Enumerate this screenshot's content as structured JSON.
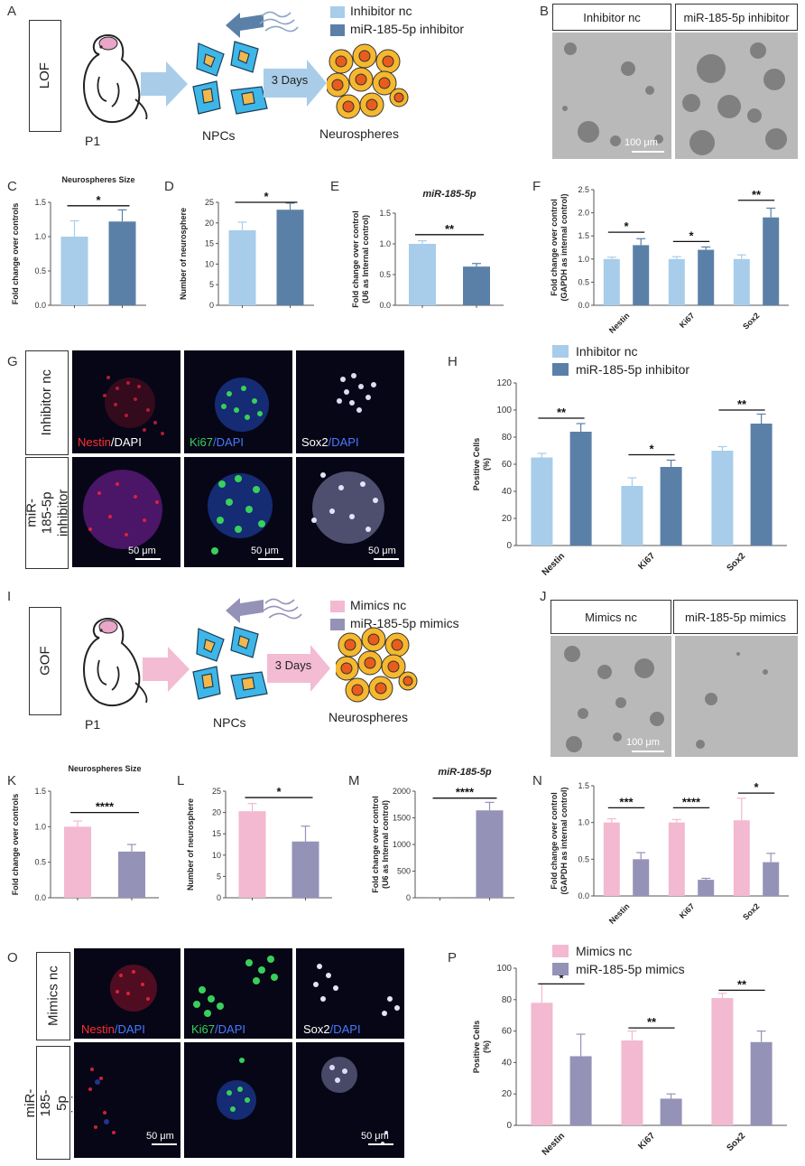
{
  "colors": {
    "light_blue": "#a7cdea",
    "dark_blue": "#5b80a8",
    "pink": "#f2b9d1",
    "purple": "#9592b8",
    "cell": "#3fb6e8",
    "nucleus": "#f2b84b",
    "sphere_outer": "#f5b82e",
    "sphere_inner": "#e85d1e",
    "lof_arrow": "#a9cde8",
    "gof_arrow": "#f3bcd2"
  },
  "panel_letters": [
    "A",
    "B",
    "C",
    "D",
    "E",
    "F",
    "G",
    "H",
    "I",
    "J",
    "K",
    "L",
    "M",
    "N",
    "O",
    "P"
  ],
  "schematic_lof": {
    "side_label": "LOF",
    "stage1": "P1",
    "stage2": "NPCs",
    "days": "3 Days",
    "stage3": "Neurospheres",
    "legend": [
      "Inhibitor nc",
      "miR-185-5p inhibitor"
    ]
  },
  "schematic_gof": {
    "side_label": "GOF",
    "stage1": "P1",
    "stage2": "NPCs",
    "days": "3 Days",
    "stage3": "Neurospheres",
    "legend": [
      "Mimics nc",
      "miR-185-5p mimics"
    ]
  },
  "micro_b": {
    "headers": [
      "Inhibitor nc",
      "miR-185-5p inhibitor"
    ],
    "scale": "100 μm"
  },
  "micro_j": {
    "headers": [
      "Mimics nc",
      "miR-185-5p mimics"
    ],
    "scale": "100 μm"
  },
  "if_g": {
    "rows": [
      "Inhibitor nc",
      "miR-185-5p inhibitor"
    ],
    "stains": [
      [
        "Nestin",
        "/DAPI"
      ],
      [
        "Ki67",
        "/DAPI"
      ],
      [
        "Sox2",
        "/DAPI"
      ]
    ],
    "scales": [
      "50 μm",
      "50 μm",
      "50 μm"
    ]
  },
  "if_o": {
    "rows": [
      "Mimics nc",
      "miR-185-5p mimics"
    ],
    "stains": [
      [
        "Nestin",
        "/DAPI"
      ],
      [
        "Ki67",
        "/DAPI"
      ],
      [
        "Sox2",
        "/DAPI"
      ]
    ],
    "scales": [
      "50 μm",
      "50 μm"
    ]
  },
  "chart_data": [
    {
      "id": "C",
      "type": "bar",
      "title": "Neurospheres Size",
      "ylabel": "Fold change over controls",
      "ylim": [
        0,
        1.5
      ],
      "yticks": [
        "0.0",
        "0.5",
        "1.0",
        "1.5"
      ],
      "values": [
        1.0,
        1.22
      ],
      "errors": [
        0.23,
        0.17
      ],
      "colors": [
        "#a7cdea",
        "#5b80a8"
      ],
      "sig": [
        {
          "text": "*",
          "from": 0,
          "to": 1,
          "y": 1.45
        }
      ]
    },
    {
      "id": "D",
      "type": "bar",
      "title": "",
      "ylabel": "Number of neurosphere",
      "ylim": [
        0,
        25
      ],
      "yticks": [
        "0",
        "5",
        "10",
        "15",
        "20",
        "25"
      ],
      "values": [
        18.2,
        23.2
      ],
      "errors": [
        2.0,
        1.6
      ],
      "colors": [
        "#a7cdea",
        "#5b80a8"
      ],
      "sig": [
        {
          "text": "*",
          "from": 0,
          "to": 1,
          "y": 25
        }
      ]
    },
    {
      "id": "E",
      "type": "bar",
      "title": "miR-185-5p",
      "ylabel": "Fold change over control (U6 as Internal control)",
      "ylim": [
        0,
        1.5
      ],
      "yticks": [
        "0.0",
        "0.5",
        "1.0",
        "1.5"
      ],
      "values": [
        1.0,
        0.63
      ],
      "errors": [
        0.05,
        0.05
      ],
      "colors": [
        "#a7cdea",
        "#5b80a8"
      ],
      "sig": [
        {
          "text": "**",
          "from": 0,
          "to": 1,
          "y": 1.15
        }
      ]
    },
    {
      "id": "F",
      "type": "bar",
      "title": "",
      "ylabel": "Fold change over control (GAPDH as internal control)",
      "ylim": [
        0,
        2.5
      ],
      "yticks": [
        "0.0",
        "0.5",
        "1.0",
        "1.5",
        "2.0",
        "2.5"
      ],
      "categories": [
        "Nestin",
        "Ki67",
        "Sox2"
      ],
      "series": [
        {
          "values": [
            1.0,
            1.0,
            1.0
          ],
          "errors": [
            0.04,
            0.05,
            0.09
          ]
        },
        {
          "values": [
            1.3,
            1.2,
            1.9
          ],
          "errors": [
            0.14,
            0.06,
            0.2
          ]
        }
      ],
      "colors": [
        "#a7cdea",
        "#5b80a8"
      ],
      "sig": [
        {
          "text": "*",
          "group": 0,
          "y": 1.58
        },
        {
          "text": "*",
          "group": 1,
          "y": 1.38
        },
        {
          "text": "**",
          "group": 2,
          "y": 2.27
        }
      ]
    },
    {
      "id": "H",
      "type": "bar",
      "title": "",
      "ylabel": "Positive Cells (%)",
      "ylim": [
        0,
        120
      ],
      "yticks": [
        "0",
        "20",
        "40",
        "60",
        "80",
        "100",
        "120"
      ],
      "categories": [
        "Nestin",
        "Ki67",
        "Sox2"
      ],
      "series": [
        {
          "name": "Inhibitor nc",
          "values": [
            65,
            44,
            70
          ],
          "errors": [
            3,
            6,
            3
          ]
        },
        {
          "name": "miR-185-5p inhibitor",
          "values": [
            84,
            58,
            90
          ],
          "errors": [
            6,
            5,
            7
          ]
        }
      ],
      "colors": [
        "#a7cdea",
        "#5b80a8"
      ],
      "sig": [
        {
          "text": "**",
          "group": 0,
          "y": 94
        },
        {
          "text": "*",
          "group": 1,
          "y": 67
        },
        {
          "text": "**",
          "group": 2,
          "y": 100
        }
      ]
    },
    {
      "id": "K",
      "type": "bar",
      "title": "Neurospheres Size",
      "ylabel": "Fold change over controls",
      "ylim": [
        0,
        1.5
      ],
      "yticks": [
        "0.0",
        "0.5",
        "1.0",
        "1.5"
      ],
      "values": [
        1.0,
        0.65
      ],
      "errors": [
        0.08,
        0.1
      ],
      "colors": [
        "#f2b9d1",
        "#9592b8"
      ],
      "sig": [
        {
          "text": "****",
          "from": 0,
          "to": 1,
          "y": 1.2
        }
      ]
    },
    {
      "id": "L",
      "type": "bar",
      "title": "",
      "ylabel": "Number of neurosphere",
      "ylim": [
        0,
        25
      ],
      "yticks": [
        "0",
        "5",
        "10",
        "15",
        "20",
        "25"
      ],
      "values": [
        20.3,
        13.2
      ],
      "errors": [
        1.8,
        3.6
      ],
      "colors": [
        "#f2b9d1",
        "#9592b8"
      ],
      "sig": [
        {
          "text": "*",
          "from": 0,
          "to": 1,
          "y": 23.5
        }
      ]
    },
    {
      "id": "M",
      "type": "bar",
      "title": "miR-185-5p",
      "ylabel": "Fold change over control (U6 as Internal control)",
      "ylim": [
        0,
        2000
      ],
      "yticks": [
        "0",
        "500",
        "1000",
        "1500",
        "2000"
      ],
      "values": [
        1,
        1640
      ],
      "errors": [
        0,
        150
      ],
      "colors": [
        "#f2b9d1",
        "#9592b8"
      ],
      "sig": [
        {
          "text": "****",
          "from": 0,
          "to": 1,
          "y": 1870
        }
      ]
    },
    {
      "id": "N",
      "type": "bar",
      "title": "",
      "ylabel": "Fold change over control (GAPDH as internal control)",
      "ylim": [
        0,
        1.5
      ],
      "yticks": [
        "0.0",
        "0.5",
        "1.0",
        "1.5"
      ],
      "categories": [
        "Nestin",
        "Ki67",
        "Sox2"
      ],
      "series": [
        {
          "values": [
            1.0,
            1.0,
            1.03
          ],
          "errors": [
            0.05,
            0.04,
            0.3
          ]
        },
        {
          "values": [
            0.5,
            0.22,
            0.46
          ],
          "errors": [
            0.09,
            0.02,
            0.12
          ]
        }
      ],
      "colors": [
        "#f2b9d1",
        "#9592b8"
      ],
      "sig": [
        {
          "text": "***",
          "group": 0,
          "y": 1.2
        },
        {
          "text": "****",
          "group": 1,
          "y": 1.2
        },
        {
          "text": "*",
          "group": 2,
          "y": 1.4
        }
      ]
    },
    {
      "id": "P",
      "type": "bar",
      "title": "",
      "ylabel": "Positive Cells (%)",
      "ylim": [
        0,
        100
      ],
      "yticks": [
        "0",
        "20",
        "40",
        "60",
        "80",
        "100"
      ],
      "categories": [
        "Nestin",
        "Ki67",
        "Sox2"
      ],
      "series": [
        {
          "name": "Mimics nc",
          "values": [
            78,
            54,
            81
          ],
          "errors": [
            12,
            6,
            3
          ]
        },
        {
          "name": "miR-185-5p mimics",
          "values": [
            44,
            17,
            53
          ],
          "errors": [
            14,
            3,
            7
          ]
        }
      ],
      "colors": [
        "#f2b9d1",
        "#9592b8"
      ],
      "sig": [
        {
          "text": "*",
          "group": 0,
          "y": 90
        },
        {
          "text": "**",
          "group": 1,
          "y": 62
        },
        {
          "text": "**",
          "group": 2,
          "y": 86
        }
      ]
    }
  ]
}
